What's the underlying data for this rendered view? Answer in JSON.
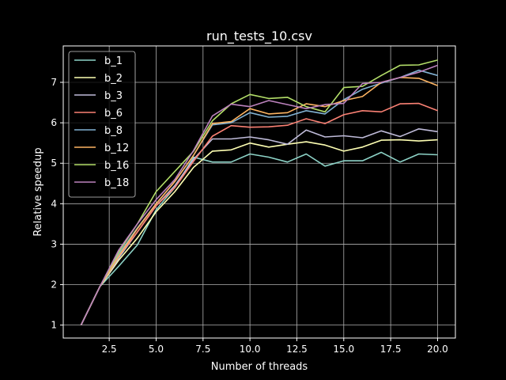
{
  "chart_data": {
    "type": "line",
    "title": "run_tests_10.csv",
    "xlabel": "Number of threads",
    "ylabel": "Relative speedup",
    "xlim": [
      0.05,
      20.95
    ],
    "ylim": [
      0.68,
      7.9
    ],
    "xticks": [
      2.5,
      5.0,
      7.5,
      10.0,
      12.5,
      15.0,
      17.5,
      20.0
    ],
    "xtick_labels": [
      "2.5",
      "5.0",
      "7.5",
      "10.0",
      "12.5",
      "15.0",
      "17.5",
      "20.0"
    ],
    "yticks": [
      1,
      2,
      3,
      4,
      5,
      6,
      7
    ],
    "ytick_labels": [
      "1",
      "2",
      "3",
      "4",
      "5",
      "6",
      "7"
    ],
    "grid": true,
    "legend_position": "top-left",
    "x": [
      1,
      2,
      3,
      4,
      5,
      6,
      7,
      8,
      9,
      10,
      11,
      12,
      13,
      14,
      15,
      16,
      17,
      18,
      19,
      20
    ],
    "series": [
      {
        "name": "b_1",
        "color": "#8dd3c7",
        "values": [
          1,
          1.95,
          2.45,
          2.98,
          3.85,
          4.4,
          5.15,
          5.03,
          5.03,
          5.23,
          5.15,
          5.03,
          5.23,
          4.93,
          5.06,
          5.06,
          5.27,
          5.03,
          5.23,
          5.21
        ]
      },
      {
        "name": "b_2",
        "color": "#feffb3",
        "values": [
          1,
          1.95,
          2.6,
          3.15,
          3.8,
          4.3,
          4.9,
          5.3,
          5.33,
          5.5,
          5.4,
          5.47,
          5.53,
          5.45,
          5.3,
          5.4,
          5.57,
          5.58,
          5.55,
          5.58
        ]
      },
      {
        "name": "b_3",
        "color": "#bfbbd9",
        "values": [
          1,
          1.95,
          2.65,
          3.3,
          3.95,
          4.45,
          5.1,
          5.6,
          5.6,
          5.65,
          5.58,
          5.47,
          5.82,
          5.65,
          5.68,
          5.63,
          5.8,
          5.66,
          5.85,
          5.78
        ]
      },
      {
        "name": "b_6",
        "color": "#fa8174",
        "values": [
          1,
          1.95,
          2.7,
          3.3,
          3.95,
          4.4,
          5.05,
          5.67,
          5.93,
          5.89,
          5.9,
          5.94,
          6.1,
          5.98,
          6.2,
          6.3,
          6.27,
          6.47,
          6.48,
          6.3
        ]
      },
      {
        "name": "b_8",
        "color": "#81b1d2",
        "values": [
          1,
          1.95,
          2.75,
          3.4,
          4.0,
          4.55,
          5.2,
          5.95,
          6.0,
          6.25,
          6.14,
          6.16,
          6.3,
          6.22,
          6.57,
          6.83,
          6.98,
          7.12,
          7.3,
          7.17
        ]
      },
      {
        "name": "b_12",
        "color": "#fdb462",
        "values": [
          1,
          1.95,
          2.7,
          3.38,
          4.0,
          4.55,
          5.2,
          5.98,
          6.03,
          6.35,
          6.22,
          6.25,
          6.47,
          6.4,
          6.55,
          6.65,
          7.0,
          7.12,
          7.1,
          6.92
        ]
      },
      {
        "name": "b_16",
        "color": "#b3de69",
        "values": [
          1,
          1.95,
          2.8,
          3.5,
          4.3,
          4.8,
          5.3,
          6.05,
          6.47,
          6.7,
          6.6,
          6.63,
          6.4,
          6.27,
          6.87,
          6.9,
          7.17,
          7.42,
          7.43,
          7.55
        ]
      },
      {
        "name": "b_18",
        "color": "#bc82bd",
        "values": [
          1,
          1.95,
          2.85,
          3.5,
          4.1,
          4.6,
          5.32,
          6.17,
          6.46,
          6.4,
          6.55,
          6.45,
          6.35,
          6.45,
          6.48,
          6.97,
          7.0,
          7.12,
          7.25,
          7.42
        ]
      }
    ]
  }
}
